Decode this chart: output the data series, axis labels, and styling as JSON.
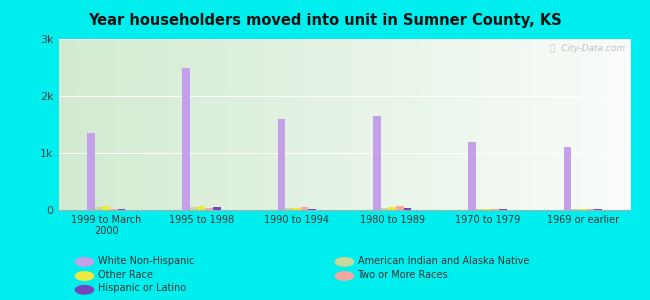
{
  "title": "Year householders moved into unit in Sumner County, KS",
  "categories": [
    "1999 to March\n2000",
    "1995 to 1998",
    "1990 to 1994",
    "1980 to 1989",
    "1970 to 1979",
    "1969 or earlier"
  ],
  "series": {
    "White Non-Hispanic": {
      "values": [
        1350,
        2500,
        1600,
        1650,
        1200,
        1100
      ],
      "color": "#c4a0e8"
    },
    "American Indian and Alaska Native": {
      "values": [
        55,
        60,
        35,
        35,
        20,
        20
      ],
      "color": "#c8d898"
    },
    "Other Race": {
      "values": [
        75,
        65,
        30,
        45,
        22,
        22
      ],
      "color": "#f0e840"
    },
    "Two or More Races": {
      "values": [
        25,
        38,
        58,
        65,
        18,
        18
      ],
      "color": "#f4a8a0"
    },
    "Hispanic or Latino": {
      "values": [
        18,
        55,
        20,
        28,
        14,
        10
      ],
      "color": "#7744bb"
    }
  },
  "ylim": [
    0,
    3000
  ],
  "yticks": [
    0,
    1000,
    2000,
    3000
  ],
  "ytick_labels": [
    "0",
    "1k",
    "2k",
    "3k"
  ],
  "background_outer": "#00eeee",
  "watermark": "ⓘ  City-Data.com",
  "bar_width": 0.08
}
